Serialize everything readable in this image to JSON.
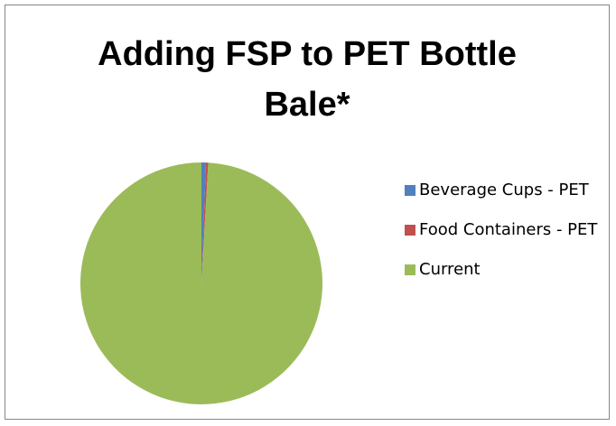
{
  "chart_data": {
    "type": "pie",
    "title": "Adding FSP to PET Bottle Bale*",
    "categories": [
      "Beverage Cups - PET",
      "Food Containers - PET",
      "Current"
    ],
    "values": [
      0.6,
      0.3,
      99.1
    ],
    "colors": [
      "#4F81BD",
      "#C0504D",
      "#9BBB59"
    ],
    "legend_position": "right"
  }
}
